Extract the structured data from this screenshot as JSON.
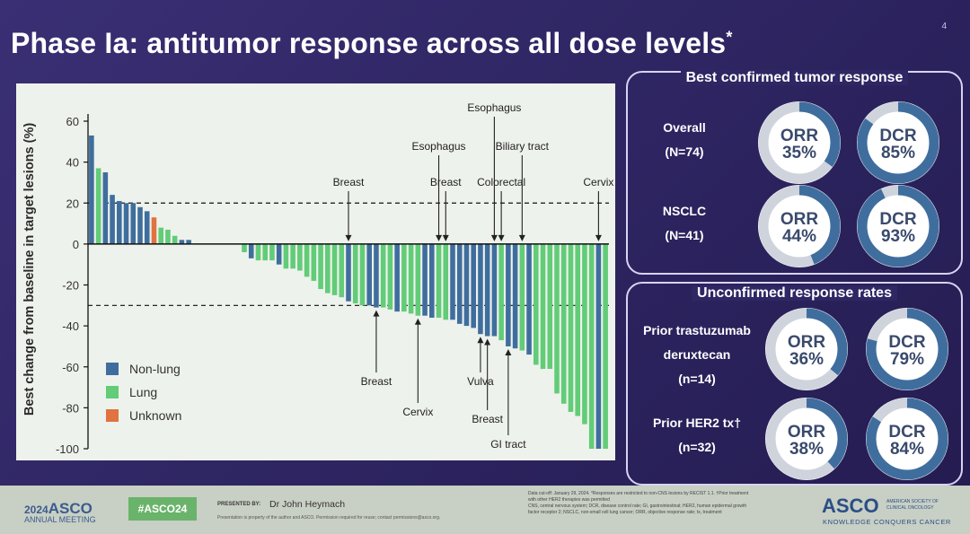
{
  "slide": {
    "title": "Phase Ia: antitumor response across all dose levels",
    "title_mark": "*",
    "slide_number": "4"
  },
  "chart_data": {
    "type": "bar",
    "subtype": "waterfall",
    "ylabel": "Best change from baseline in target lesions (%)",
    "ylim": [
      -100,
      65
    ],
    "yticks": [
      60,
      40,
      20,
      0,
      -20,
      -40,
      -60,
      -80,
      -100
    ],
    "ytick_labels": [
      "60",
      "40",
      "20",
      "0",
      "-20",
      "-40",
      "-60",
      "-80",
      "-100"
    ],
    "reference_lines": [
      20,
      -30
    ],
    "legend_position": "bottom-left",
    "legend": [
      {
        "name": "Non-lung",
        "color": "#3f6e9e"
      },
      {
        "name": "Lung",
        "color": "#62cc78"
      },
      {
        "name": "Unknown",
        "color": "#e0733f"
      }
    ],
    "colors": {
      "non_lung": "#3f6e9e",
      "lung": "#62cc78",
      "unknown": "#e0733f"
    },
    "values": [
      53,
      37,
      35,
      24,
      21,
      20,
      20,
      18,
      16,
      13,
      8,
      7,
      4,
      2,
      2,
      0,
      0,
      0,
      0,
      0,
      0,
      0,
      -4,
      -7,
      -8,
      -8,
      -8,
      -10,
      -12,
      -12,
      -13,
      -16,
      -18,
      -22,
      -24,
      -25,
      -26,
      -28,
      -29,
      -30,
      -30,
      -31,
      -31,
      -32,
      -33,
      -33,
      -34,
      -35,
      -35,
      -36,
      -36,
      -37,
      -37,
      -39,
      -40,
      -41,
      -44,
      -45,
      -45,
      -47,
      -50,
      -51,
      -52,
      -54,
      -59,
      -61,
      -61,
      -73,
      -78,
      -82,
      -84,
      -88,
      -100,
      -100,
      -100
    ],
    "groups": [
      "N",
      "L",
      "N",
      "N",
      "N",
      "N",
      "N",
      "N",
      "N",
      "U",
      "L",
      "L",
      "L",
      "N",
      "N",
      "X",
      "X",
      "X",
      "X",
      "X",
      "X",
      "X",
      "L",
      "N",
      "L",
      "L",
      "L",
      "N",
      "L",
      "L",
      "L",
      "L",
      "L",
      "L",
      "L",
      "L",
      "L",
      "N",
      "L",
      "L",
      "N",
      "N",
      "L",
      "L",
      "N",
      "L",
      "L",
      "L",
      "N",
      "N",
      "L",
      "L",
      "N",
      "N",
      "N",
      "N",
      "N",
      "N",
      "N",
      "L",
      "N",
      "N",
      "L",
      "N",
      "L",
      "L",
      "L",
      "L",
      "L",
      "L",
      "L",
      "L",
      "L",
      "N",
      "L"
    ],
    "annotations": [
      {
        "label": "Breast",
        "bar": 37,
        "side": "top"
      },
      {
        "label": "Esophagus",
        "bar": 50,
        "side": "top"
      },
      {
        "label": "Breast",
        "bar": 51,
        "side": "top"
      },
      {
        "label": "Esophagus",
        "bar": 58,
        "side": "top"
      },
      {
        "label": "Colorectal",
        "bar": 59,
        "side": "top"
      },
      {
        "label": "Biliary tract",
        "bar": 62,
        "side": "top"
      },
      {
        "label": "Cervix",
        "bar": 73,
        "side": "top"
      },
      {
        "label": "Breast",
        "bar": 41,
        "side": "bottom"
      },
      {
        "label": "Cervix",
        "bar": 47,
        "side": "bottom"
      },
      {
        "label": "Vulva",
        "bar": 56,
        "side": "bottom"
      },
      {
        "label": "Breast",
        "bar": 57,
        "side": "bottom"
      },
      {
        "label": "GI tract",
        "bar": 60,
        "side": "bottom"
      }
    ]
  },
  "confirmed": {
    "title": "Best confirmed tumor response",
    "rows": [
      {
        "label_line1": "Overall",
        "label_line2": "(N=74)",
        "orr_label": "ORR",
        "orr": "35%",
        "orr_value": 35,
        "dcr_label": "DCR",
        "dcr": "85%",
        "dcr_value": 85
      },
      {
        "label_line1": "NSCLC",
        "label_line2": "(N=41)",
        "orr_label": "ORR",
        "orr": "44%",
        "orr_value": 44,
        "dcr_label": "DCR",
        "dcr": "93%",
        "dcr_value": 93
      }
    ]
  },
  "unconfirmed": {
    "title": "Unconfirmed response rates",
    "rows": [
      {
        "label_line1": "Prior trastuzumab",
        "label_line2": "deruxtecan",
        "label_line3": "(n=14)",
        "orr_label": "ORR",
        "orr": "36%",
        "orr_value": 36,
        "dcr_label": "DCR",
        "dcr": "79%",
        "dcr_value": 79
      },
      {
        "label_line1": "Prior HER2 tx†",
        "label_line2": "(n=32)",
        "orr_label": "ORR",
        "orr": "38%",
        "orr_value": 38,
        "dcr_label": "DCR",
        "dcr": "84%",
        "dcr_value": 84
      }
    ]
  },
  "donut_colors": {
    "ring_bg": "#cfd3dc",
    "ring_fill": "#3f6e9e",
    "text": "#3a4a6c"
  },
  "footer": {
    "meeting_year": "2024",
    "meeting_name": "ASCO",
    "meeting_sub": "ANNUAL MEETING",
    "hashtag": "#ASCO24",
    "presented_by_label": "PRESENTED BY:",
    "presenter": "Dr John Heymach",
    "permission_note": "Presentation is property of the author and ASCO. Permission required for reuse; contact permissions@asco.org.",
    "data_note_line1": "Data cut-off: January 29, 2024. *Responses are restricted to non-CNS lesions by RECIST 1.1. †Prior treatment",
    "data_note_line2": "with other HER2 therapies was permitted",
    "data_note_line3": "CNS, central nervous system; DCR, disease control rate; GI, gastrointestinal; HER2, human epidermal growth",
    "data_note_line4": "factor receptor 2; NSCLC, non-small cell lung cancer; ORR, objective response rate; tx, treatment",
    "org_name": "ASCO",
    "org_sub1": "AMERICAN SOCIETY OF",
    "org_sub2": "CLINICAL ONCOLOGY",
    "org_tagline": "KNOWLEDGE CONQUERS CANCER"
  }
}
